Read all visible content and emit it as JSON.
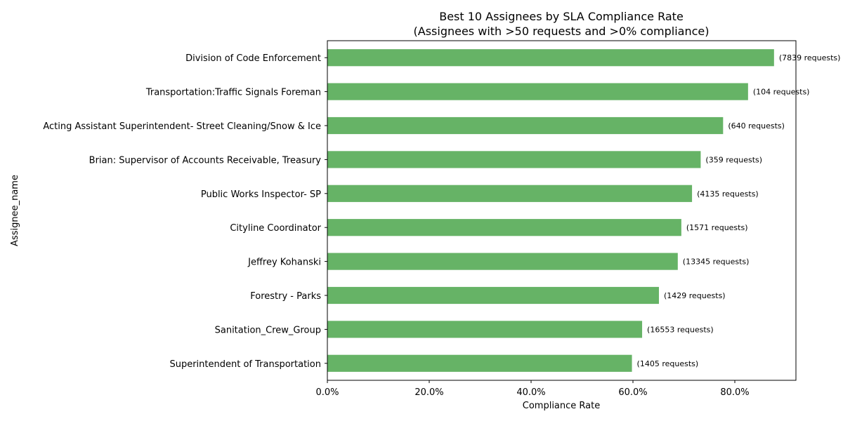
{
  "chart_data": {
    "type": "bar",
    "orientation": "horizontal",
    "title": "Best 10 Assignees by SLA Compliance Rate",
    "subtitle": "(Assignees with >50 requests and >0% compliance)",
    "xlabel": "Compliance Rate",
    "ylabel": "Assignee_name",
    "xlim": [
      0,
      0.92
    ],
    "xticks": [
      0,
      0.2,
      0.4,
      0.6,
      0.8
    ],
    "xtick_labels": [
      "0.0%",
      "20.0%",
      "40.0%",
      "60.0%",
      "80.0%"
    ],
    "grid": false,
    "bar_color": "#66b366",
    "categories": [
      "Division of Code Enforcement",
      "Transportation:Traffic Signals Foreman",
      "Acting Assistant Superintendent- Street Cleaning/Snow & Ice",
      "Brian: Supervisor of Accounts Receivable, Treasury",
      "Public Works Inspector- SP",
      "Cityline Coordinator",
      "Jeffrey Kohanski",
      "Forestry - Parks",
      "Sanitation_Crew_Group",
      "Superintendent of Transportation"
    ],
    "values": [
      0.877,
      0.826,
      0.777,
      0.733,
      0.716,
      0.695,
      0.688,
      0.651,
      0.618,
      0.598
    ],
    "annotations": [
      "(7839 requests)",
      "(104 requests)",
      "(640 requests)",
      "(359 requests)",
      "(4135 requests)",
      "(1571 requests)",
      "(13345 requests)",
      "(1429 requests)",
      "(16553 requests)",
      "(1405 requests)"
    ]
  }
}
